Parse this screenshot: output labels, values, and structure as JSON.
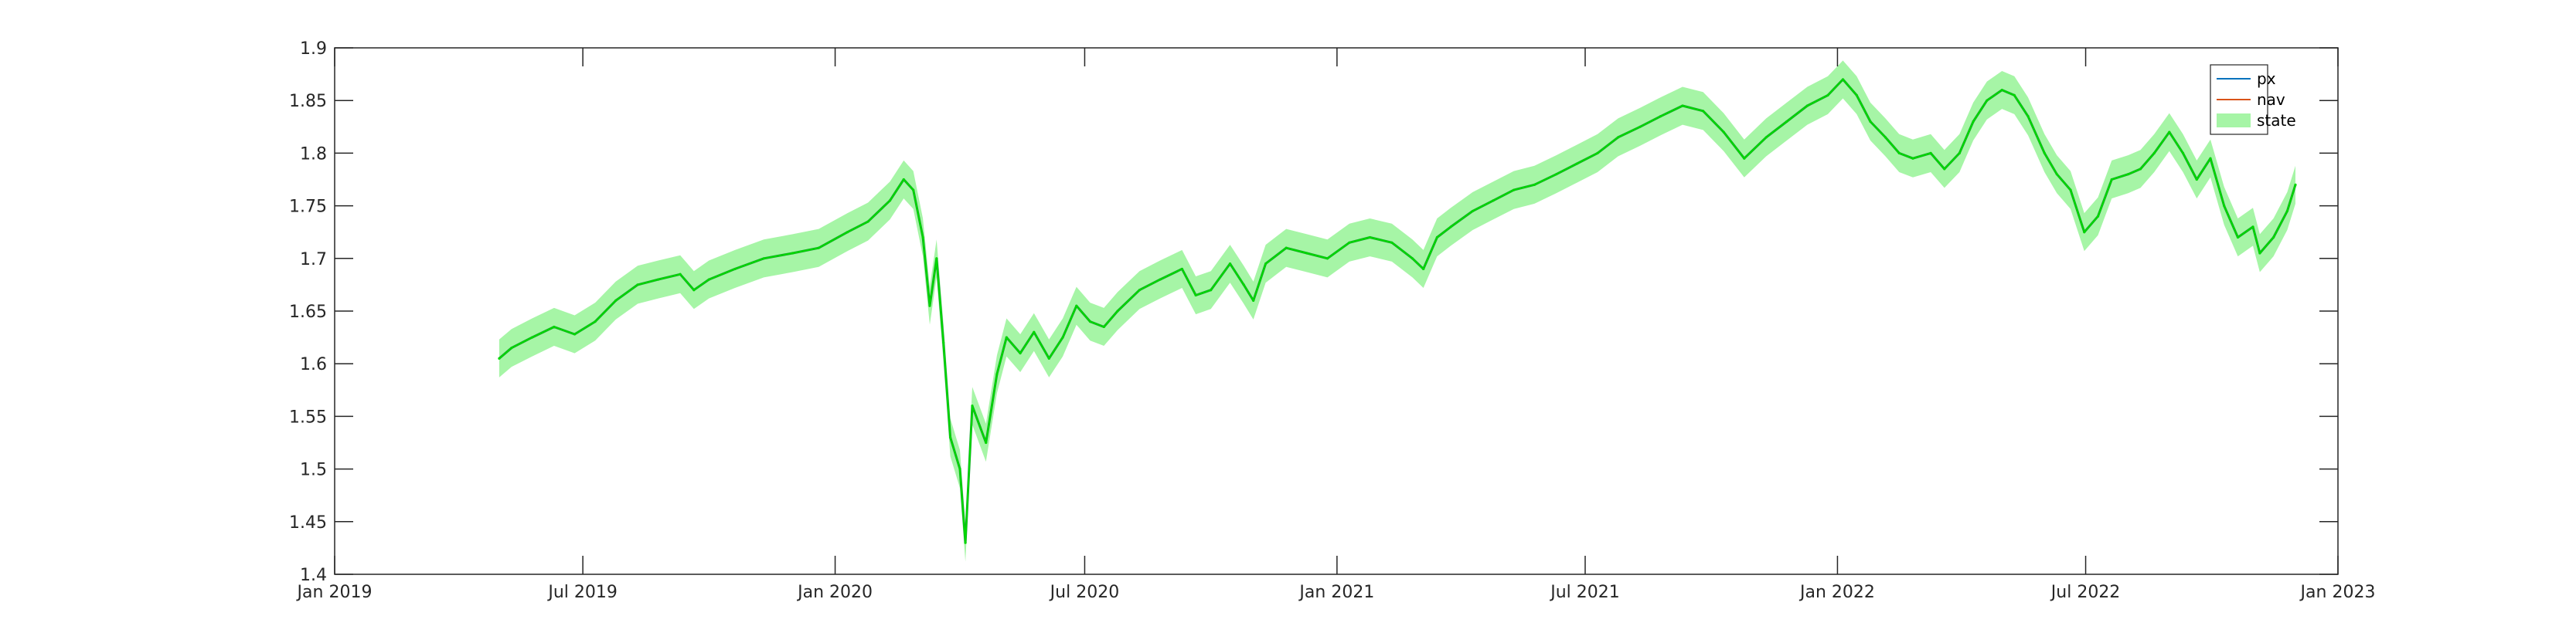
{
  "chart_data": {
    "type": "line",
    "title": "",
    "xlabel": "",
    "ylabel": "",
    "xlim": [
      "2019-01-01",
      "2023-01-01"
    ],
    "ylim": [
      1.4,
      1.9
    ],
    "grid": false,
    "legend_placement": "top-right",
    "x_ticks": [
      "2019-01-01",
      "2019-07-01",
      "2020-01-01",
      "2020-07-01",
      "2021-01-01",
      "2021-07-01",
      "2022-01-01",
      "2022-07-01",
      "2023-01-01"
    ],
    "x_tick_labels": [
      "Jan 2019",
      "Jul 2019",
      "Jan 2020",
      "Jul 2020",
      "Jan 2021",
      "Jul 2021",
      "Jan 2022",
      "Jul 2022",
      "Jan 2023"
    ],
    "y_ticks": [
      1.4,
      1.45,
      1.5,
      1.55,
      1.6,
      1.65,
      1.7,
      1.75,
      1.8,
      1.85,
      1.9
    ],
    "y_tick_labels": [
      "1.4",
      "1.45",
      "1.5",
      "1.55",
      "1.6",
      "1.65",
      "1.7",
      "1.75",
      "1.8",
      "1.85",
      "1.9"
    ],
    "legend": [
      {
        "name": "px",
        "color": "#0072BD",
        "kind": "line"
      },
      {
        "name": "nav",
        "color": "#D95319",
        "kind": "line"
      },
      {
        "name": "state",
        "color": "#A6F5A6",
        "kind": "patch"
      }
    ],
    "band_halfwidth": 0.018,
    "series": [
      {
        "name": "state",
        "color": "#00D800",
        "fill_color": "#A6F5A6",
        "points": [
          [
            "2019-05-01",
            1.605
          ],
          [
            "2019-05-10",
            1.615
          ],
          [
            "2019-05-25",
            1.625
          ],
          [
            "2019-06-10",
            1.635
          ],
          [
            "2019-06-25",
            1.628
          ],
          [
            "2019-07-10",
            1.64
          ],
          [
            "2019-07-25",
            1.66
          ],
          [
            "2019-08-10",
            1.675
          ],
          [
            "2019-08-25",
            1.68
          ],
          [
            "2019-09-10",
            1.685
          ],
          [
            "2019-09-20",
            1.67
          ],
          [
            "2019-10-01",
            1.68
          ],
          [
            "2019-10-20",
            1.69
          ],
          [
            "2019-11-10",
            1.7
          ],
          [
            "2019-12-01",
            1.705
          ],
          [
            "2019-12-20",
            1.71
          ],
          [
            "2020-01-10",
            1.725
          ],
          [
            "2020-01-25",
            1.735
          ],
          [
            "2020-02-10",
            1.755
          ],
          [
            "2020-02-20",
            1.775
          ],
          [
            "2020-02-27",
            1.765
          ],
          [
            "2020-03-05",
            1.72
          ],
          [
            "2020-03-10",
            1.655
          ],
          [
            "2020-03-15",
            1.7
          ],
          [
            "2020-03-20",
            1.62
          ],
          [
            "2020-03-25",
            1.53
          ],
          [
            "2020-04-01",
            1.5
          ],
          [
            "2020-04-05",
            1.43
          ],
          [
            "2020-04-10",
            1.56
          ],
          [
            "2020-04-20",
            1.525
          ],
          [
            "2020-04-28",
            1.59
          ],
          [
            "2020-05-05",
            1.625
          ],
          [
            "2020-05-15",
            1.61
          ],
          [
            "2020-05-25",
            1.63
          ],
          [
            "2020-06-05",
            1.605
          ],
          [
            "2020-06-15",
            1.625
          ],
          [
            "2020-06-25",
            1.655
          ],
          [
            "2020-07-05",
            1.64
          ],
          [
            "2020-07-15",
            1.635
          ],
          [
            "2020-07-25",
            1.65
          ],
          [
            "2020-08-10",
            1.67
          ],
          [
            "2020-08-25",
            1.68
          ],
          [
            "2020-09-10",
            1.69
          ],
          [
            "2020-09-20",
            1.665
          ],
          [
            "2020-10-01",
            1.67
          ],
          [
            "2020-10-15",
            1.695
          ],
          [
            "2020-10-25",
            1.675
          ],
          [
            "2020-11-01",
            1.66
          ],
          [
            "2020-11-10",
            1.695
          ],
          [
            "2020-11-25",
            1.71
          ],
          [
            "2020-12-10",
            1.705
          ],
          [
            "2020-12-25",
            1.7
          ],
          [
            "2021-01-10",
            1.715
          ],
          [
            "2021-01-25",
            1.72
          ],
          [
            "2021-02-10",
            1.715
          ],
          [
            "2021-02-25",
            1.7
          ],
          [
            "2021-03-05",
            1.69
          ],
          [
            "2021-03-15",
            1.72
          ],
          [
            "2021-03-25",
            1.73
          ],
          [
            "2021-04-10",
            1.745
          ],
          [
            "2021-04-25",
            1.755
          ],
          [
            "2021-05-10",
            1.765
          ],
          [
            "2021-05-25",
            1.77
          ],
          [
            "2021-06-10",
            1.78
          ],
          [
            "2021-06-25",
            1.79
          ],
          [
            "2021-07-10",
            1.8
          ],
          [
            "2021-07-25",
            1.815
          ],
          [
            "2021-08-10",
            1.825
          ],
          [
            "2021-08-25",
            1.835
          ],
          [
            "2021-09-10",
            1.845
          ],
          [
            "2021-09-25",
            1.84
          ],
          [
            "2021-10-10",
            1.82
          ],
          [
            "2021-10-25",
            1.795
          ],
          [
            "2021-11-10",
            1.815
          ],
          [
            "2021-11-25",
            1.83
          ],
          [
            "2021-12-10",
            1.845
          ],
          [
            "2021-12-25",
            1.855
          ],
          [
            "2022-01-05",
            1.87
          ],
          [
            "2022-01-15",
            1.855
          ],
          [
            "2022-01-25",
            1.83
          ],
          [
            "2022-02-05",
            1.815
          ],
          [
            "2022-02-15",
            1.8
          ],
          [
            "2022-02-25",
            1.795
          ],
          [
            "2022-03-10",
            1.8
          ],
          [
            "2022-03-20",
            1.785
          ],
          [
            "2022-03-31",
            1.8
          ],
          [
            "2022-04-10",
            1.83
          ],
          [
            "2022-04-20",
            1.85
          ],
          [
            "2022-05-01",
            1.86
          ],
          [
            "2022-05-10",
            1.855
          ],
          [
            "2022-05-20",
            1.835
          ],
          [
            "2022-06-01",
            1.8
          ],
          [
            "2022-06-10",
            1.78
          ],
          [
            "2022-06-20",
            1.765
          ],
          [
            "2022-06-30",
            1.725
          ],
          [
            "2022-07-10",
            1.74
          ],
          [
            "2022-07-20",
            1.775
          ],
          [
            "2022-08-01",
            1.78
          ],
          [
            "2022-08-10",
            1.785
          ],
          [
            "2022-08-20",
            1.8
          ],
          [
            "2022-08-31",
            1.82
          ],
          [
            "2022-09-10",
            1.8
          ],
          [
            "2022-09-20",
            1.775
          ],
          [
            "2022-09-30",
            1.795
          ],
          [
            "2022-10-10",
            1.75
          ],
          [
            "2022-10-20",
            1.72
          ],
          [
            "2022-10-31",
            1.73
          ],
          [
            "2022-11-05",
            1.705
          ],
          [
            "2022-11-15",
            1.72
          ],
          [
            "2022-11-25",
            1.745
          ],
          [
            "2022-12-01",
            1.77
          ]
        ]
      }
    ]
  }
}
